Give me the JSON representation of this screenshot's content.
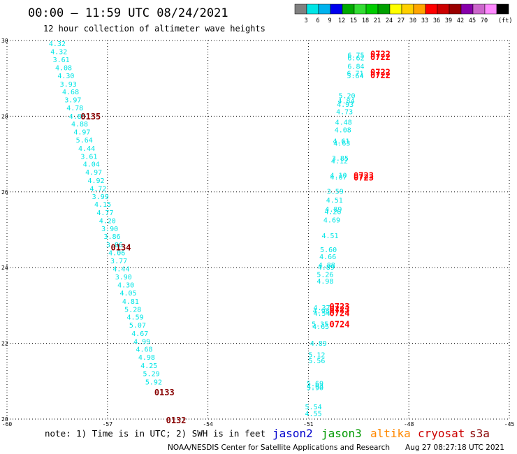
{
  "header": {
    "title": "00:00 – 11:59 UTC 08/24/2021",
    "subtitle": "12 hour collection of altimeter wave heights"
  },
  "colorbar": {
    "labels": [
      "3",
      "6",
      "9",
      "12",
      "15",
      "18",
      "21",
      "24",
      "27",
      "30",
      "33",
      "36",
      "39",
      "42",
      "45",
      "70"
    ],
    "unit": "(ft)",
    "colors": [
      "#808080",
      "#00e5e5",
      "#00b2ee",
      "#0000ee",
      "#00aa00",
      "#33dd33",
      "#00cc00",
      "#00a000",
      "#ffff00",
      "#ffd000",
      "#ffa500",
      "#ff0000",
      "#cc0000",
      "#990000",
      "#8800aa",
      "#cc66cc",
      "#ff88ff",
      "#000000"
    ]
  },
  "footer": {
    "note": "note: 1) Time is in UTC; 2) SWH is in feet",
    "credit": "NOAA/NESDIS Center for Satellite Applications and Research",
    "timestamp": "Aug 27 08:27:18 UTC 2021",
    "legend": [
      {
        "name": "jason2",
        "color": "#0000cc"
      },
      {
        "name": "jason3",
        "color": "#009900"
      },
      {
        "name": "altika",
        "color": "#ff8800"
      },
      {
        "name": "cryosat",
        "color": "#cc0000"
      },
      {
        "name": "s3a",
        "color": "#880000"
      }
    ]
  },
  "chart_data": {
    "type": "scatter",
    "xlim": [
      -60,
      -45
    ],
    "ylim": [
      20,
      30
    ],
    "xticks": [
      -60,
      -57,
      -54,
      -51,
      -48,
      -45
    ],
    "xtick_labels": [
      "-60",
      "-57",
      "-54",
      "-51",
      "-48",
      "-45"
    ],
    "yticks": [
      20,
      22,
      24,
      26,
      28,
      30
    ],
    "ytick_labels": [
      "20",
      "22",
      "24",
      "26",
      "28",
      "30"
    ],
    "grid": true,
    "wave_color": "#00e5e5",
    "series": [
      {
        "points": [
          {
            "x": -58.5,
            "y": 29.93,
            "v": "4.32"
          },
          {
            "x": -58.45,
            "y": 29.71,
            "v": "4.32"
          },
          {
            "x": -58.38,
            "y": 29.5,
            "v": "3.61"
          },
          {
            "x": -58.31,
            "y": 29.29,
            "v": "4.08"
          },
          {
            "x": -58.24,
            "y": 29.08,
            "v": "4.30"
          },
          {
            "x": -58.17,
            "y": 28.86,
            "v": "3.93"
          },
          {
            "x": -58.1,
            "y": 28.65,
            "v": "4.68"
          },
          {
            "x": -58.03,
            "y": 28.44,
            "v": "3.97"
          },
          {
            "x": -57.97,
            "y": 28.23,
            "v": "4.78"
          },
          {
            "x": -57.9,
            "y": 28.01,
            "v": "4.85"
          },
          {
            "x": -57.83,
            "y": 27.8,
            "v": "4.88"
          },
          {
            "x": -57.76,
            "y": 27.59,
            "v": "4.97"
          },
          {
            "x": -57.69,
            "y": 27.38,
            "v": "5.64"
          },
          {
            "x": -57.62,
            "y": 27.16,
            "v": "4.44"
          },
          {
            "x": -57.55,
            "y": 26.95,
            "v": "3.61"
          },
          {
            "x": -57.48,
            "y": 26.74,
            "v": "4.04"
          },
          {
            "x": -57.41,
            "y": 26.53,
            "v": "4.97"
          },
          {
            "x": -57.34,
            "y": 26.31,
            "v": "4.92"
          },
          {
            "x": -57.28,
            "y": 26.1,
            "v": "4.72"
          },
          {
            "x": -57.21,
            "y": 25.89,
            "v": "3.99"
          },
          {
            "x": -57.14,
            "y": 25.68,
            "v": "4.15"
          },
          {
            "x": -57.07,
            "y": 25.46,
            "v": "4.77"
          },
          {
            "x": -57.0,
            "y": 25.25,
            "v": "4.20"
          },
          {
            "x": -56.93,
            "y": 25.04,
            "v": "3.90"
          },
          {
            "x": -56.86,
            "y": 24.83,
            "v": "3.86"
          },
          {
            "x": -56.79,
            "y": 24.61,
            "v": "3.86"
          },
          {
            "x": -56.72,
            "y": 24.4,
            "v": "4.06"
          },
          {
            "x": -56.66,
            "y": 24.19,
            "v": "3.77"
          },
          {
            "x": -56.59,
            "y": 23.98,
            "v": "4.44"
          },
          {
            "x": -56.52,
            "y": 23.76,
            "v": "3.90"
          },
          {
            "x": -56.45,
            "y": 23.55,
            "v": "4.30"
          },
          {
            "x": -56.38,
            "y": 23.34,
            "v": "4.05"
          },
          {
            "x": -56.31,
            "y": 23.12,
            "v": "4.81"
          },
          {
            "x": -56.24,
            "y": 22.91,
            "v": "5.28"
          },
          {
            "x": -56.17,
            "y": 22.7,
            "v": "4.59"
          },
          {
            "x": -56.1,
            "y": 22.49,
            "v": "5.07"
          },
          {
            "x": -56.03,
            "y": 22.27,
            "v": "4.67"
          },
          {
            "x": -55.97,
            "y": 22.06,
            "v": "4.99"
          },
          {
            "x": -55.9,
            "y": 21.85,
            "v": "4.68"
          },
          {
            "x": -55.83,
            "y": 21.64,
            "v": "4.98"
          },
          {
            "x": -55.76,
            "y": 21.42,
            "v": "4.25"
          },
          {
            "x": -55.69,
            "y": 21.21,
            "v": "5.29"
          },
          {
            "x": -55.62,
            "y": 20.99,
            "v": "5.92"
          },
          {
            "x": -49.58,
            "y": 29.62,
            "v": "6.75"
          },
          {
            "x": -49.58,
            "y": 29.55,
            "v": "6.62"
          },
          {
            "x": -49.58,
            "y": 29.33,
            "v": "6.84"
          },
          {
            "x": -49.6,
            "y": 29.14,
            "v": "6.71"
          },
          {
            "x": -49.6,
            "y": 29.08,
            "v": "5.64"
          },
          {
            "x": -49.85,
            "y": 28.55,
            "v": "5.20"
          },
          {
            "x": -49.87,
            "y": 28.41,
            "v": "4.84"
          },
          {
            "x": -49.9,
            "y": 28.32,
            "v": "4.93"
          },
          {
            "x": -49.92,
            "y": 28.13,
            "v": "4.73"
          },
          {
            "x": -49.95,
            "y": 27.85,
            "v": "4.48"
          },
          {
            "x": -49.97,
            "y": 27.65,
            "v": "4.08"
          },
          {
            "x": -50.02,
            "y": 27.35,
            "v": "4.61"
          },
          {
            "x": -50.0,
            "y": 27.3,
            "v": "4.63"
          },
          {
            "x": -50.05,
            "y": 26.9,
            "v": "3.85"
          },
          {
            "x": -50.07,
            "y": 26.83,
            "v": "4.12"
          },
          {
            "x": -50.1,
            "y": 26.45,
            "v": "4.10"
          },
          {
            "x": -50.1,
            "y": 26.4,
            "v": "4.07"
          },
          {
            "x": -50.2,
            "y": 26.02,
            "v": "3.59"
          },
          {
            "x": -50.22,
            "y": 25.79,
            "v": "4.51"
          },
          {
            "x": -50.25,
            "y": 25.55,
            "v": "4.89"
          },
          {
            "x": -50.27,
            "y": 25.49,
            "v": "4.26"
          },
          {
            "x": -50.3,
            "y": 25.27,
            "v": "4.69"
          },
          {
            "x": -50.35,
            "y": 24.85,
            "v": "4.51"
          },
          {
            "x": -50.4,
            "y": 24.48,
            "v": "5.60"
          },
          {
            "x": -50.42,
            "y": 24.3,
            "v": "4.66"
          },
          {
            "x": -50.45,
            "y": 24.08,
            "v": "4.88"
          },
          {
            "x": -50.47,
            "y": 24.02,
            "v": "4.89"
          },
          {
            "x": -50.5,
            "y": 23.83,
            "v": "5.26"
          },
          {
            "x": -50.5,
            "y": 23.65,
            "v": "4.98"
          },
          {
            "x": -50.6,
            "y": 22.95,
            "v": "4.37"
          },
          {
            "x": -50.62,
            "y": 22.87,
            "v": "4.98"
          },
          {
            "x": -50.6,
            "y": 22.8,
            "v": "4.54"
          },
          {
            "x": -50.65,
            "y": 22.52,
            "v": "5.35"
          },
          {
            "x": -50.63,
            "y": 22.45,
            "v": "4.65"
          },
          {
            "x": -50.7,
            "y": 22.01,
            "v": "4.89"
          },
          {
            "x": -50.75,
            "y": 21.71,
            "v": "5.12"
          },
          {
            "x": -50.75,
            "y": 21.55,
            "v": "5.56"
          },
          {
            "x": -50.8,
            "y": 20.95,
            "v": "5.69"
          },
          {
            "x": -50.8,
            "y": 20.88,
            "v": "4.93"
          },
          {
            "x": -50.8,
            "y": 20.84,
            "v": "5.90"
          },
          {
            "x": -50.85,
            "y": 20.33,
            "v": "5.54"
          },
          {
            "x": -50.85,
            "y": 20.16,
            "v": "4.55"
          }
        ]
      }
    ],
    "pass_labels": [
      {
        "x": -57.5,
        "y": 28.01,
        "text": "0135",
        "color": "#880000"
      },
      {
        "x": -56.6,
        "y": 24.55,
        "text": "0134",
        "color": "#880000"
      },
      {
        "x": -55.3,
        "y": 20.72,
        "text": "0133",
        "color": "#880000"
      },
      {
        "x": -54.95,
        "y": 19.98,
        "text": "0132",
        "color": "#880000"
      },
      {
        "x": -48.85,
        "y": 29.66,
        "text": "0722",
        "color": "#ff0000"
      },
      {
        "x": -48.85,
        "y": 29.58,
        "text": "0722",
        "color": "#ff0000"
      },
      {
        "x": -48.85,
        "y": 29.18,
        "text": "0722",
        "color": "#ff0000"
      },
      {
        "x": -48.85,
        "y": 29.1,
        "text": "0722",
        "color": "#ff0000"
      },
      {
        "x": -49.35,
        "y": 26.45,
        "text": "0723",
        "color": "#ff0000"
      },
      {
        "x": -49.35,
        "y": 26.39,
        "text": "0723",
        "color": "#ff0000"
      },
      {
        "x": -50.07,
        "y": 22.99,
        "text": "0723",
        "color": "#ff0000"
      },
      {
        "x": -50.07,
        "y": 22.91,
        "text": "0723",
        "color": "#ff0000"
      },
      {
        "x": -50.07,
        "y": 22.81,
        "text": "0724",
        "color": "#ff0000"
      },
      {
        "x": -50.07,
        "y": 22.52,
        "text": "0724",
        "color": "#ff0000"
      }
    ]
  }
}
